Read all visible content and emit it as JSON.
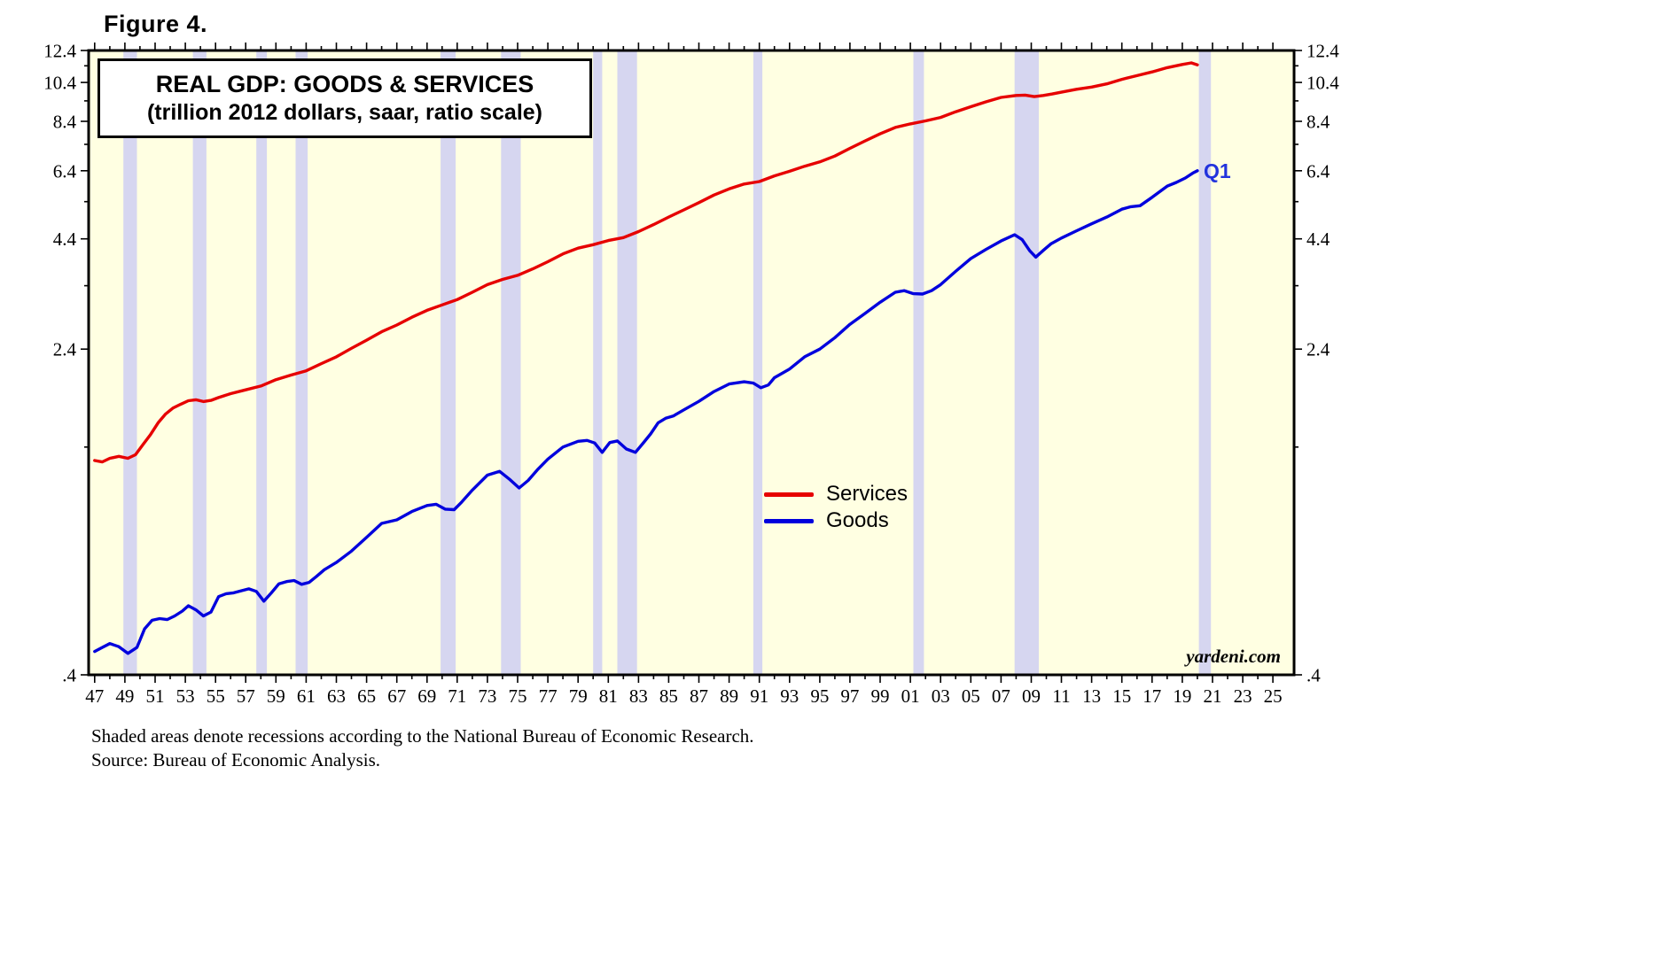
{
  "figure_label": "Figure 4.",
  "chart": {
    "title_line1": "REAL GDP: GOODS & SERVICES",
    "title_line2": "(trillion 2012 dollars, saar, ratio scale)",
    "watermark": "yardeni.com",
    "end_label": "Q1",
    "legend": [
      {
        "label": "Services"
      },
      {
        "label": "Goods"
      }
    ]
  },
  "footnotes": [
    "Shaded areas denote recessions according to the National Bureau of Economic Research.",
    "Source: Bureau of Economic Analysis."
  ],
  "colors": {
    "plot_bg": "#ffffe2",
    "recession_band": "#d6d6f0",
    "services": "#e60000",
    "goods": "#0000dd",
    "q1_label": "#2233dd",
    "frame": "#000000"
  },
  "chart_data": {
    "type": "line",
    "title": "REAL GDP: GOODS & SERVICES",
    "subtitle": "(trillion 2012 dollars, saar, ratio scale)",
    "xlabel": "",
    "ylabel": "trillion 2012 dollars",
    "y_scale": "log",
    "ylim": [
      0.4,
      12.4
    ],
    "xlim": [
      1946.6,
      2026.4
    ],
    "grid": false,
    "legend_position": "center-right",
    "y_ticks": {
      "major": [
        0.4,
        2.4,
        4.4,
        6.4,
        8.4,
        10.4,
        12.4
      ],
      "labels": [
        ".4",
        "2.4",
        "4.4",
        "6.4",
        "8.4",
        "10.4",
        "12.4"
      ],
      "minor": [
        1.4,
        3.4,
        5.4,
        7.4,
        9.4,
        11.4
      ]
    },
    "x_ticks": {
      "years": [
        1947,
        1949,
        1951,
        1953,
        1955,
        1957,
        1959,
        1961,
        1963,
        1965,
        1967,
        1969,
        1971,
        1973,
        1975,
        1977,
        1979,
        1981,
        1983,
        1985,
        1987,
        1989,
        1991,
        1993,
        1995,
        1997,
        1999,
        2001,
        2003,
        2005,
        2007,
        2009,
        2011,
        2013,
        2015,
        2017,
        2019,
        2021,
        2023,
        2025
      ],
      "labels": [
        "47",
        "49",
        "51",
        "53",
        "55",
        "57",
        "59",
        "61",
        "63",
        "65",
        "67",
        "69",
        "71",
        "73",
        "75",
        "77",
        "79",
        "81",
        "83",
        "85",
        "87",
        "89",
        "91",
        "93",
        "95",
        "97",
        "99",
        "01",
        "03",
        "05",
        "07",
        "09",
        "11",
        "13",
        "15",
        "17",
        "19",
        "21",
        "23",
        "25"
      ],
      "minor_years": [
        1948,
        1950,
        1952,
        1954,
        1956,
        1958,
        1960,
        1962,
        1964,
        1966,
        1968,
        1970,
        1972,
        1974,
        1976,
        1978,
        1980,
        1982,
        1984,
        1986,
        1988,
        1990,
        1992,
        1994,
        1996,
        1998,
        2000,
        2002,
        2004,
        2006,
        2008,
        2010,
        2012,
        2014,
        2016,
        2018,
        2020,
        2022,
        2024
      ]
    },
    "recessions": [
      [
        1948.9,
        1949.8
      ],
      [
        1953.5,
        1954.4
      ],
      [
        1957.7,
        1958.4
      ],
      [
        1960.3,
        1961.1
      ],
      [
        1969.9,
        1970.9
      ],
      [
        1973.9,
        1975.2
      ],
      [
        1980.0,
        1980.6
      ],
      [
        1981.6,
        1982.9
      ],
      [
        1990.6,
        1991.2
      ],
      [
        2001.2,
        2001.9
      ],
      [
        2007.9,
        2009.5
      ],
      [
        2020.1,
        2020.9
      ]
    ],
    "series": [
      {
        "name": "Services",
        "color": "#e60000",
        "points": [
          [
            1947.0,
            1.3
          ],
          [
            1947.5,
            1.29
          ],
          [
            1948.0,
            1.316
          ],
          [
            1948.6,
            1.33
          ],
          [
            1949.2,
            1.316
          ],
          [
            1949.7,
            1.342
          ],
          [
            1950.2,
            1.42
          ],
          [
            1950.7,
            1.5
          ],
          [
            1951.2,
            1.6
          ],
          [
            1951.7,
            1.68
          ],
          [
            1952.2,
            1.736
          ],
          [
            1952.7,
            1.772
          ],
          [
            1953.2,
            1.806
          ],
          [
            1953.7,
            1.816
          ],
          [
            1954.2,
            1.798
          ],
          [
            1954.7,
            1.81
          ],
          [
            1955.2,
            1.838
          ],
          [
            1956.0,
            1.878
          ],
          [
            1957.0,
            1.918
          ],
          [
            1958.0,
            1.958
          ],
          [
            1959.0,
            2.028
          ],
          [
            1960.0,
            2.08
          ],
          [
            1961.0,
            2.13
          ],
          [
            1962.0,
            2.215
          ],
          [
            1963.0,
            2.3
          ],
          [
            1964.0,
            2.41
          ],
          [
            1965.0,
            2.52
          ],
          [
            1966.0,
            2.64
          ],
          [
            1967.0,
            2.74
          ],
          [
            1968.0,
            2.86
          ],
          [
            1969.0,
            2.97
          ],
          [
            1970.0,
            3.06
          ],
          [
            1971.0,
            3.15
          ],
          [
            1972.0,
            3.28
          ],
          [
            1973.0,
            3.42
          ],
          [
            1974.0,
            3.52
          ],
          [
            1975.0,
            3.6
          ],
          [
            1976.0,
            3.73
          ],
          [
            1977.0,
            3.88
          ],
          [
            1978.0,
            4.05
          ],
          [
            1979.0,
            4.18
          ],
          [
            1980.0,
            4.26
          ],
          [
            1981.0,
            4.36
          ],
          [
            1982.0,
            4.43
          ],
          [
            1983.0,
            4.58
          ],
          [
            1984.0,
            4.76
          ],
          [
            1985.0,
            4.96
          ],
          [
            1986.0,
            5.16
          ],
          [
            1987.0,
            5.37
          ],
          [
            1988.0,
            5.6
          ],
          [
            1989.0,
            5.79
          ],
          [
            1990.0,
            5.95
          ],
          [
            1991.0,
            6.03
          ],
          [
            1992.0,
            6.22
          ],
          [
            1993.0,
            6.38
          ],
          [
            1994.0,
            6.56
          ],
          [
            1995.0,
            6.72
          ],
          [
            1996.0,
            6.94
          ],
          [
            1997.0,
            7.24
          ],
          [
            1998.0,
            7.54
          ],
          [
            1999.0,
            7.84
          ],
          [
            2000.0,
            8.12
          ],
          [
            2001.0,
            8.28
          ],
          [
            2002.0,
            8.42
          ],
          [
            2003.0,
            8.58
          ],
          [
            2004.0,
            8.85
          ],
          [
            2005.0,
            9.1
          ],
          [
            2006.0,
            9.35
          ],
          [
            2007.0,
            9.58
          ],
          [
            2008.0,
            9.68
          ],
          [
            2008.6,
            9.7
          ],
          [
            2009.2,
            9.62
          ],
          [
            2009.8,
            9.68
          ],
          [
            2010.4,
            9.76
          ],
          [
            2011.0,
            9.86
          ],
          [
            2012.0,
            10.02
          ],
          [
            2013.0,
            10.14
          ],
          [
            2014.0,
            10.32
          ],
          [
            2015.0,
            10.58
          ],
          [
            2016.0,
            10.8
          ],
          [
            2017.0,
            11.02
          ],
          [
            2018.0,
            11.28
          ],
          [
            2019.0,
            11.48
          ],
          [
            2019.6,
            11.58
          ],
          [
            2020.0,
            11.46
          ]
        ]
      },
      {
        "name": "Goods",
        "color": "#0000dd",
        "points": [
          [
            1947.0,
            0.455
          ],
          [
            1947.5,
            0.465
          ],
          [
            1948.0,
            0.475
          ],
          [
            1948.6,
            0.467
          ],
          [
            1949.2,
            0.45
          ],
          [
            1949.8,
            0.465
          ],
          [
            1950.3,
            0.515
          ],
          [
            1950.8,
            0.54
          ],
          [
            1951.3,
            0.545
          ],
          [
            1951.8,
            0.542
          ],
          [
            1952.3,
            0.553
          ],
          [
            1952.8,
            0.568
          ],
          [
            1953.2,
            0.585
          ],
          [
            1953.7,
            0.572
          ],
          [
            1954.2,
            0.553
          ],
          [
            1954.7,
            0.565
          ],
          [
            1955.2,
            0.615
          ],
          [
            1955.7,
            0.625
          ],
          [
            1956.2,
            0.628
          ],
          [
            1956.7,
            0.635
          ],
          [
            1957.2,
            0.642
          ],
          [
            1957.7,
            0.633
          ],
          [
            1958.2,
            0.6
          ],
          [
            1958.7,
            0.628
          ],
          [
            1959.2,
            0.66
          ],
          [
            1959.7,
            0.668
          ],
          [
            1960.2,
            0.672
          ],
          [
            1960.7,
            0.658
          ],
          [
            1961.2,
            0.665
          ],
          [
            1961.7,
            0.688
          ],
          [
            1962.2,
            0.713
          ],
          [
            1963.0,
            0.742
          ],
          [
            1964.0,
            0.79
          ],
          [
            1965.0,
            0.852
          ],
          [
            1966.0,
            0.92
          ],
          [
            1967.0,
            0.938
          ],
          [
            1968.0,
            0.982
          ],
          [
            1969.0,
            1.015
          ],
          [
            1969.6,
            1.022
          ],
          [
            1970.2,
            0.995
          ],
          [
            1970.8,
            0.992
          ],
          [
            1971.3,
            1.035
          ],
          [
            1972.0,
            1.105
          ],
          [
            1973.0,
            1.2
          ],
          [
            1973.8,
            1.225
          ],
          [
            1974.5,
            1.17
          ],
          [
            1975.1,
            1.118
          ],
          [
            1975.7,
            1.165
          ],
          [
            1976.3,
            1.235
          ],
          [
            1977.0,
            1.31
          ],
          [
            1978.0,
            1.4
          ],
          [
            1979.0,
            1.445
          ],
          [
            1979.6,
            1.452
          ],
          [
            1980.1,
            1.432
          ],
          [
            1980.6,
            1.36
          ],
          [
            1981.1,
            1.435
          ],
          [
            1981.6,
            1.448
          ],
          [
            1982.2,
            1.385
          ],
          [
            1982.8,
            1.36
          ],
          [
            1983.3,
            1.43
          ],
          [
            1983.8,
            1.505
          ],
          [
            1984.3,
            1.6
          ],
          [
            1984.8,
            1.64
          ],
          [
            1985.3,
            1.66
          ],
          [
            1986.0,
            1.718
          ],
          [
            1987.0,
            1.8
          ],
          [
            1988.0,
            1.9
          ],
          [
            1989.0,
            1.98
          ],
          [
            1990.0,
            2.005
          ],
          [
            1990.6,
            1.99
          ],
          [
            1991.1,
            1.94
          ],
          [
            1991.6,
            1.97
          ],
          [
            1992.0,
            2.05
          ],
          [
            1993.0,
            2.15
          ],
          [
            1994.0,
            2.3
          ],
          [
            1995.0,
            2.4
          ],
          [
            1996.0,
            2.555
          ],
          [
            1997.0,
            2.75
          ],
          [
            1998.0,
            2.92
          ],
          [
            1999.0,
            3.105
          ],
          [
            2000.0,
            3.28
          ],
          [
            2000.6,
            3.31
          ],
          [
            2001.2,
            3.255
          ],
          [
            2001.8,
            3.248
          ],
          [
            2002.4,
            3.31
          ],
          [
            2003.0,
            3.42
          ],
          [
            2004.0,
            3.68
          ],
          [
            2005.0,
            3.95
          ],
          [
            2006.0,
            4.15
          ],
          [
            2007.0,
            4.35
          ],
          [
            2007.9,
            4.5
          ],
          [
            2008.4,
            4.38
          ],
          [
            2008.9,
            4.12
          ],
          [
            2009.3,
            3.98
          ],
          [
            2009.8,
            4.13
          ],
          [
            2010.3,
            4.28
          ],
          [
            2011.0,
            4.42
          ],
          [
            2012.0,
            4.6
          ],
          [
            2013.0,
            4.78
          ],
          [
            2014.0,
            4.96
          ],
          [
            2015.0,
            5.18
          ],
          [
            2015.6,
            5.25
          ],
          [
            2016.2,
            5.28
          ],
          [
            2017.0,
            5.53
          ],
          [
            2018.0,
            5.88
          ],
          [
            2018.6,
            6.0
          ],
          [
            2019.2,
            6.15
          ],
          [
            2019.7,
            6.32
          ],
          [
            2020.0,
            6.4
          ]
        ]
      }
    ]
  }
}
